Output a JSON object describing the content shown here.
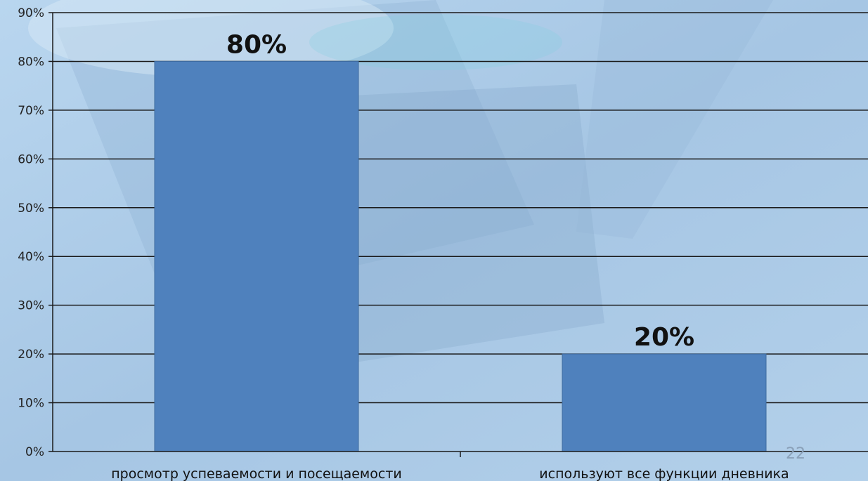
{
  "chart_data": {
    "type": "bar",
    "categories": [
      "просмотр успеваемости и посещаемости",
      "используют все функции дневника"
    ],
    "values": [
      80,
      20
    ],
    "data_labels": [
      "80%",
      "20%"
    ],
    "ylim": [
      0,
      90
    ],
    "yticks": [
      0,
      10,
      20,
      30,
      40,
      50,
      60,
      70,
      80,
      90
    ],
    "ytick_labels": [
      "0%",
      "10%",
      "20%",
      "30%",
      "40%",
      "50%",
      "60%",
      "70%",
      "80%",
      "90%"
    ],
    "grid": true,
    "legend": "none",
    "title": "",
    "xlabel": "",
    "ylabel": "",
    "bar_color": "#4f81bd"
  },
  "slide": {
    "number": "22"
  }
}
